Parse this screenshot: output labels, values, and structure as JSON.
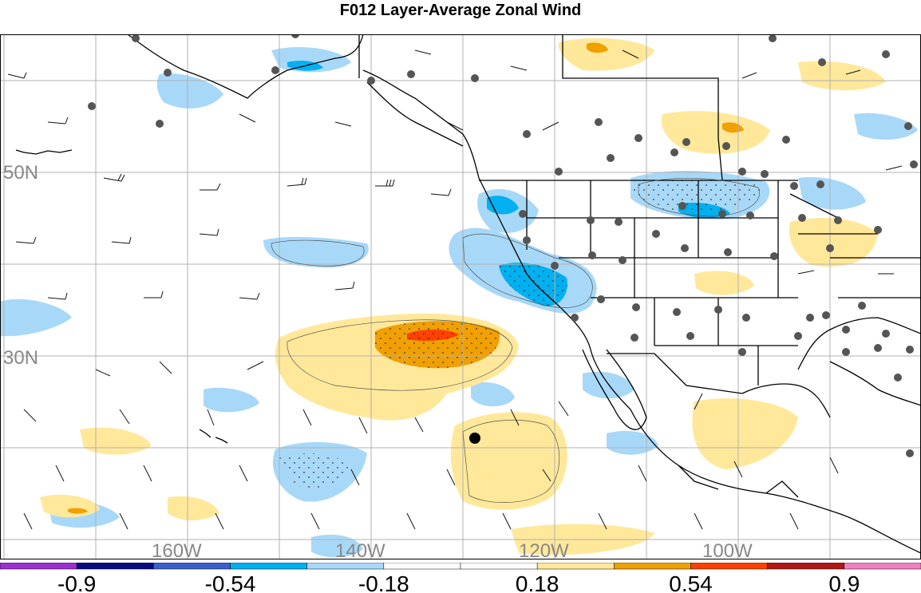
{
  "title": "F012 Layer-Average Zonal Wind",
  "map": {
    "lat_labels": [
      {
        "text": "50N"
      },
      {
        "text": "30N"
      }
    ],
    "lon_labels": [
      {
        "text": "160W"
      },
      {
        "text": "140W"
      },
      {
        "text": "120W"
      },
      {
        "text": "100W"
      }
    ]
  },
  "colorbar": {
    "colors": [
      "#9b30d0",
      "#0a0a80",
      "#3a5fcd",
      "#00b0f0",
      "#a8d8f8",
      "#ffffff",
      "#ffffff",
      "#ffe89a",
      "#f0a000",
      "#ff4000",
      "#b01818",
      "#f080c0"
    ],
    "labels": [
      "-0.9",
      "-0.54",
      "-0.18",
      "0.18",
      "0.54",
      "0.9"
    ]
  }
}
